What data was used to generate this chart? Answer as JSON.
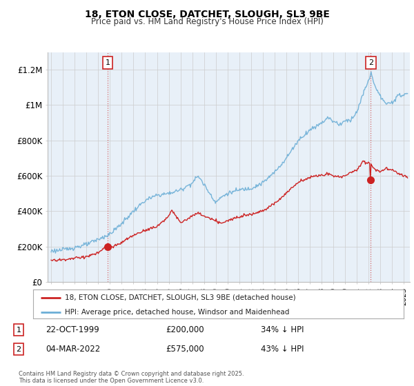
{
  "title": "18, ETON CLOSE, DATCHET, SLOUGH, SL3 9BE",
  "subtitle": "Price paid vs. HM Land Registry's House Price Index (HPI)",
  "ylabel_ticks": [
    "£0",
    "£200K",
    "£400K",
    "£600K",
    "£800K",
    "£1M",
    "£1.2M"
  ],
  "ytick_values": [
    0,
    200000,
    400000,
    600000,
    800000,
    1000000,
    1200000
  ],
  "ylim": [
    0,
    1300000
  ],
  "xlim_start": 1994.7,
  "xlim_end": 2025.5,
  "hpi_color": "#6baed6",
  "price_color": "#cc2222",
  "marker1_date": 1999.81,
  "marker1_price": 200000,
  "marker1_label": "1",
  "marker2_date": 2022.17,
  "marker2_price": 575000,
  "marker2_label": "2",
  "legend_line1": "18, ETON CLOSE, DATCHET, SLOUGH, SL3 9BE (detached house)",
  "legend_line2": "HPI: Average price, detached house, Windsor and Maidenhead",
  "ann1_num": "1",
  "ann1_date": "22-OCT-1999",
  "ann1_price": "£200,000",
  "ann1_hpi": "34% ↓ HPI",
  "ann2_num": "2",
  "ann2_date": "04-MAR-2022",
  "ann2_price": "£575,000",
  "ann2_hpi": "43% ↓ HPI",
  "footnote": "Contains HM Land Registry data © Crown copyright and database right 2025.\nThis data is licensed under the Open Government Licence v3.0.",
  "background_color": "#ffffff",
  "grid_color": "#cccccc",
  "chart_bg": "#e8f0f8"
}
